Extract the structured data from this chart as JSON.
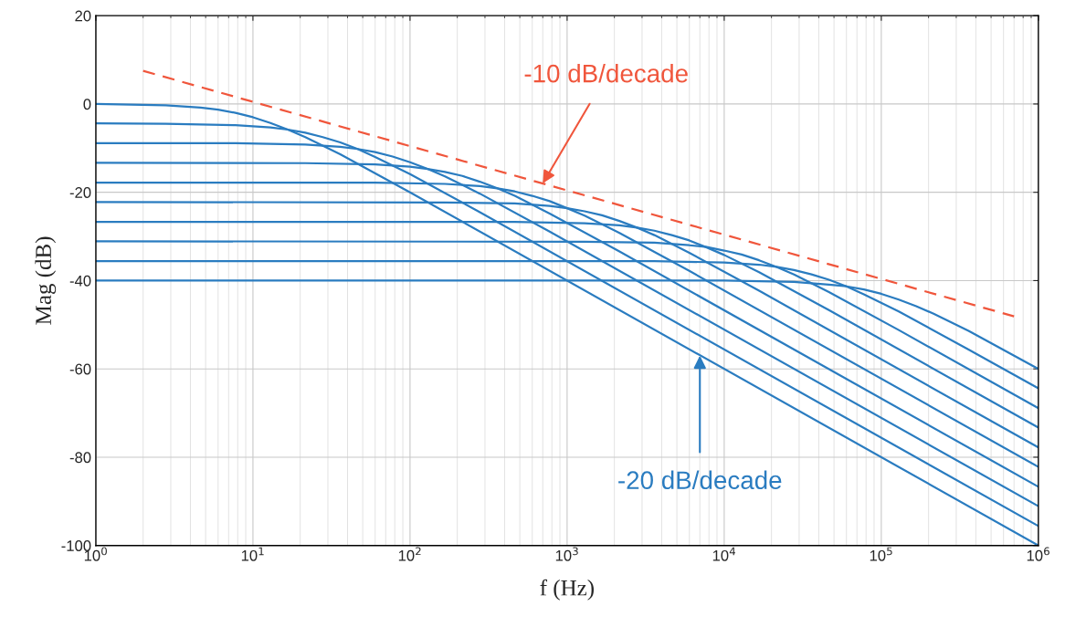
{
  "chart_data": {
    "type": "line",
    "xlabel": "f (Hz)",
    "ylabel": "Mag (dB)",
    "log": "x",
    "grid": true,
    "xlim": [
      1,
      1000000
    ],
    "ylim": [
      -100,
      20
    ],
    "xticks": [
      {
        "value": 1,
        "label": "10$^{0}$"
      },
      {
        "value": 10,
        "label": "10$^{1}$"
      },
      {
        "value": 100,
        "label": "10$^{2}$"
      },
      {
        "value": 1000,
        "label": "10$^{3}$"
      },
      {
        "value": 10000,
        "label": "10$^{4}$"
      },
      {
        "value": 100000,
        "label": "10$^{5}$"
      },
      {
        "value": 1000000,
        "label": "10$^{6}$"
      }
    ],
    "yticks": [
      -100,
      -80,
      -60,
      -40,
      -20,
      0,
      20
    ],
    "series": [
      {
        "color": "#2a7cc0",
        "x": [
          1,
          2.783,
          4.642,
          5.995,
          7.743,
          10,
          12.92,
          16.68,
          21.54,
          35.94,
          100,
          1000000
        ],
        "values": [
          0,
          -0.3,
          -0.8,
          -1.3,
          -2.0,
          -3.0,
          -4.3,
          -5.8,
          -7.5,
          -11.4,
          -20.0,
          -100
        ]
      },
      {
        "color": "#2a7cc0",
        "x": [
          1,
          2.783,
          7.743,
          12.92,
          16.68,
          21.54,
          27.83,
          35.94,
          46.42,
          59.95,
          100,
          278.3,
          1000000
        ],
        "values": [
          -4.4,
          -4.5,
          -4.8,
          -5.3,
          -5.8,
          -6.5,
          -7.5,
          -8.7,
          -10.2,
          -12.0,
          -15.9,
          -24.5,
          -95.6
        ]
      },
      {
        "color": "#2a7cc0",
        "x": [
          1,
          7.743,
          21.54,
          35.94,
          46.42,
          59.95,
          77.43,
          100,
          129.2,
          166.8,
          278.3,
          774.3,
          1000000
        ],
        "values": [
          -8.9,
          -8.9,
          -9.2,
          -9.7,
          -10.2,
          -10.9,
          -11.9,
          -13.2,
          -14.7,
          -16.4,
          -20.3,
          -28.9,
          -91.1
        ]
      },
      {
        "color": "#2a7cc0",
        "x": [
          1,
          21.54,
          59.95,
          100,
          129.2,
          166.8,
          215.4,
          278.3,
          359.4,
          464.2,
          774.3,
          2154,
          1000000
        ],
        "values": [
          -13.3,
          -13.4,
          -13.7,
          -14.2,
          -14.7,
          -15.4,
          -16.3,
          -17.6,
          -19.1,
          -20.8,
          -24.8,
          -33.4,
          -86.7
        ]
      },
      {
        "color": "#2a7cc0",
        "x": [
          1,
          59.95,
          166.8,
          278.3,
          359.4,
          464.2,
          599.5,
          774.3,
          1000,
          1292,
          2154,
          5995,
          1000000
        ],
        "values": [
          -17.8,
          -17.8,
          -18.1,
          -18.6,
          -19.1,
          -19.8,
          -20.8,
          -22.0,
          -23.6,
          -25.3,
          -29.2,
          -37.8,
          -82.2
        ]
      },
      {
        "color": "#2a7cc0",
        "x": [
          1,
          166.8,
          464.2,
          774.3,
          1000,
          1292,
          1668,
          2154,
          2783,
          3594,
          5995,
          16680,
          1000000
        ],
        "values": [
          -22.2,
          -22.3,
          -22.5,
          -23.1,
          -23.6,
          -24.3,
          -25.2,
          -26.5,
          -28.0,
          -29.7,
          -33.7,
          -42.3,
          -77.8
        ]
      },
      {
        "color": "#2a7cc0",
        "x": [
          1,
          464.2,
          1292,
          2154,
          2783,
          3594,
          4642,
          5995,
          7743,
          10000,
          16680,
          46420,
          1000000
        ],
        "values": [
          -26.7,
          -26.7,
          -27.0,
          -27.5,
          -28.0,
          -28.7,
          -29.7,
          -30.9,
          -32.5,
          -34.2,
          -38.1,
          -46.7,
          -73.3
        ]
      },
      {
        "color": "#2a7cc0",
        "x": [
          1,
          1292,
          3594,
          5995,
          7743,
          10000,
          12920,
          16680,
          21540,
          27830,
          46420,
          129200,
          1000000
        ],
        "values": [
          -31.1,
          -31.2,
          -31.4,
          -32.0,
          -32.4,
          -33.2,
          -34.1,
          -35.4,
          -36.9,
          -38.6,
          -42.6,
          -51.2,
          -68.9
        ]
      },
      {
        "color": "#2a7cc0",
        "x": [
          1,
          3594,
          10000,
          16680,
          21540,
          27830,
          35940,
          46420,
          59950,
          77430,
          129200,
          359400,
          1000000
        ],
        "values": [
          -35.6,
          -35.6,
          -35.9,
          -36.4,
          -36.9,
          -37.6,
          -38.6,
          -39.8,
          -41.3,
          -43.1,
          -47.0,
          -55.6,
          -64.4
        ]
      },
      {
        "color": "#2a7cc0",
        "x": [
          1,
          10000,
          27830,
          46420,
          59950,
          77430,
          100000,
          129200,
          166800,
          215400,
          359400,
          1000000
        ],
        "values": [
          -40.0,
          -40.0,
          -40.3,
          -40.9,
          -41.3,
          -42.0,
          -43.0,
          -44.3,
          -45.8,
          -47.5,
          -51.4,
          -60.0
        ]
      },
      {
        "color": "#f0563c",
        "line_style": "dashed",
        "x": [
          2,
          700000
        ],
        "values": [
          7.5,
          -48.1
        ]
      }
    ],
    "annotations": [
      {
        "text": "-10 dB/decade",
        "x": 700,
        "y": -18
      },
      {
        "text": "-20 dB/decade",
        "x": 7000,
        "y": -57
      }
    ]
  }
}
